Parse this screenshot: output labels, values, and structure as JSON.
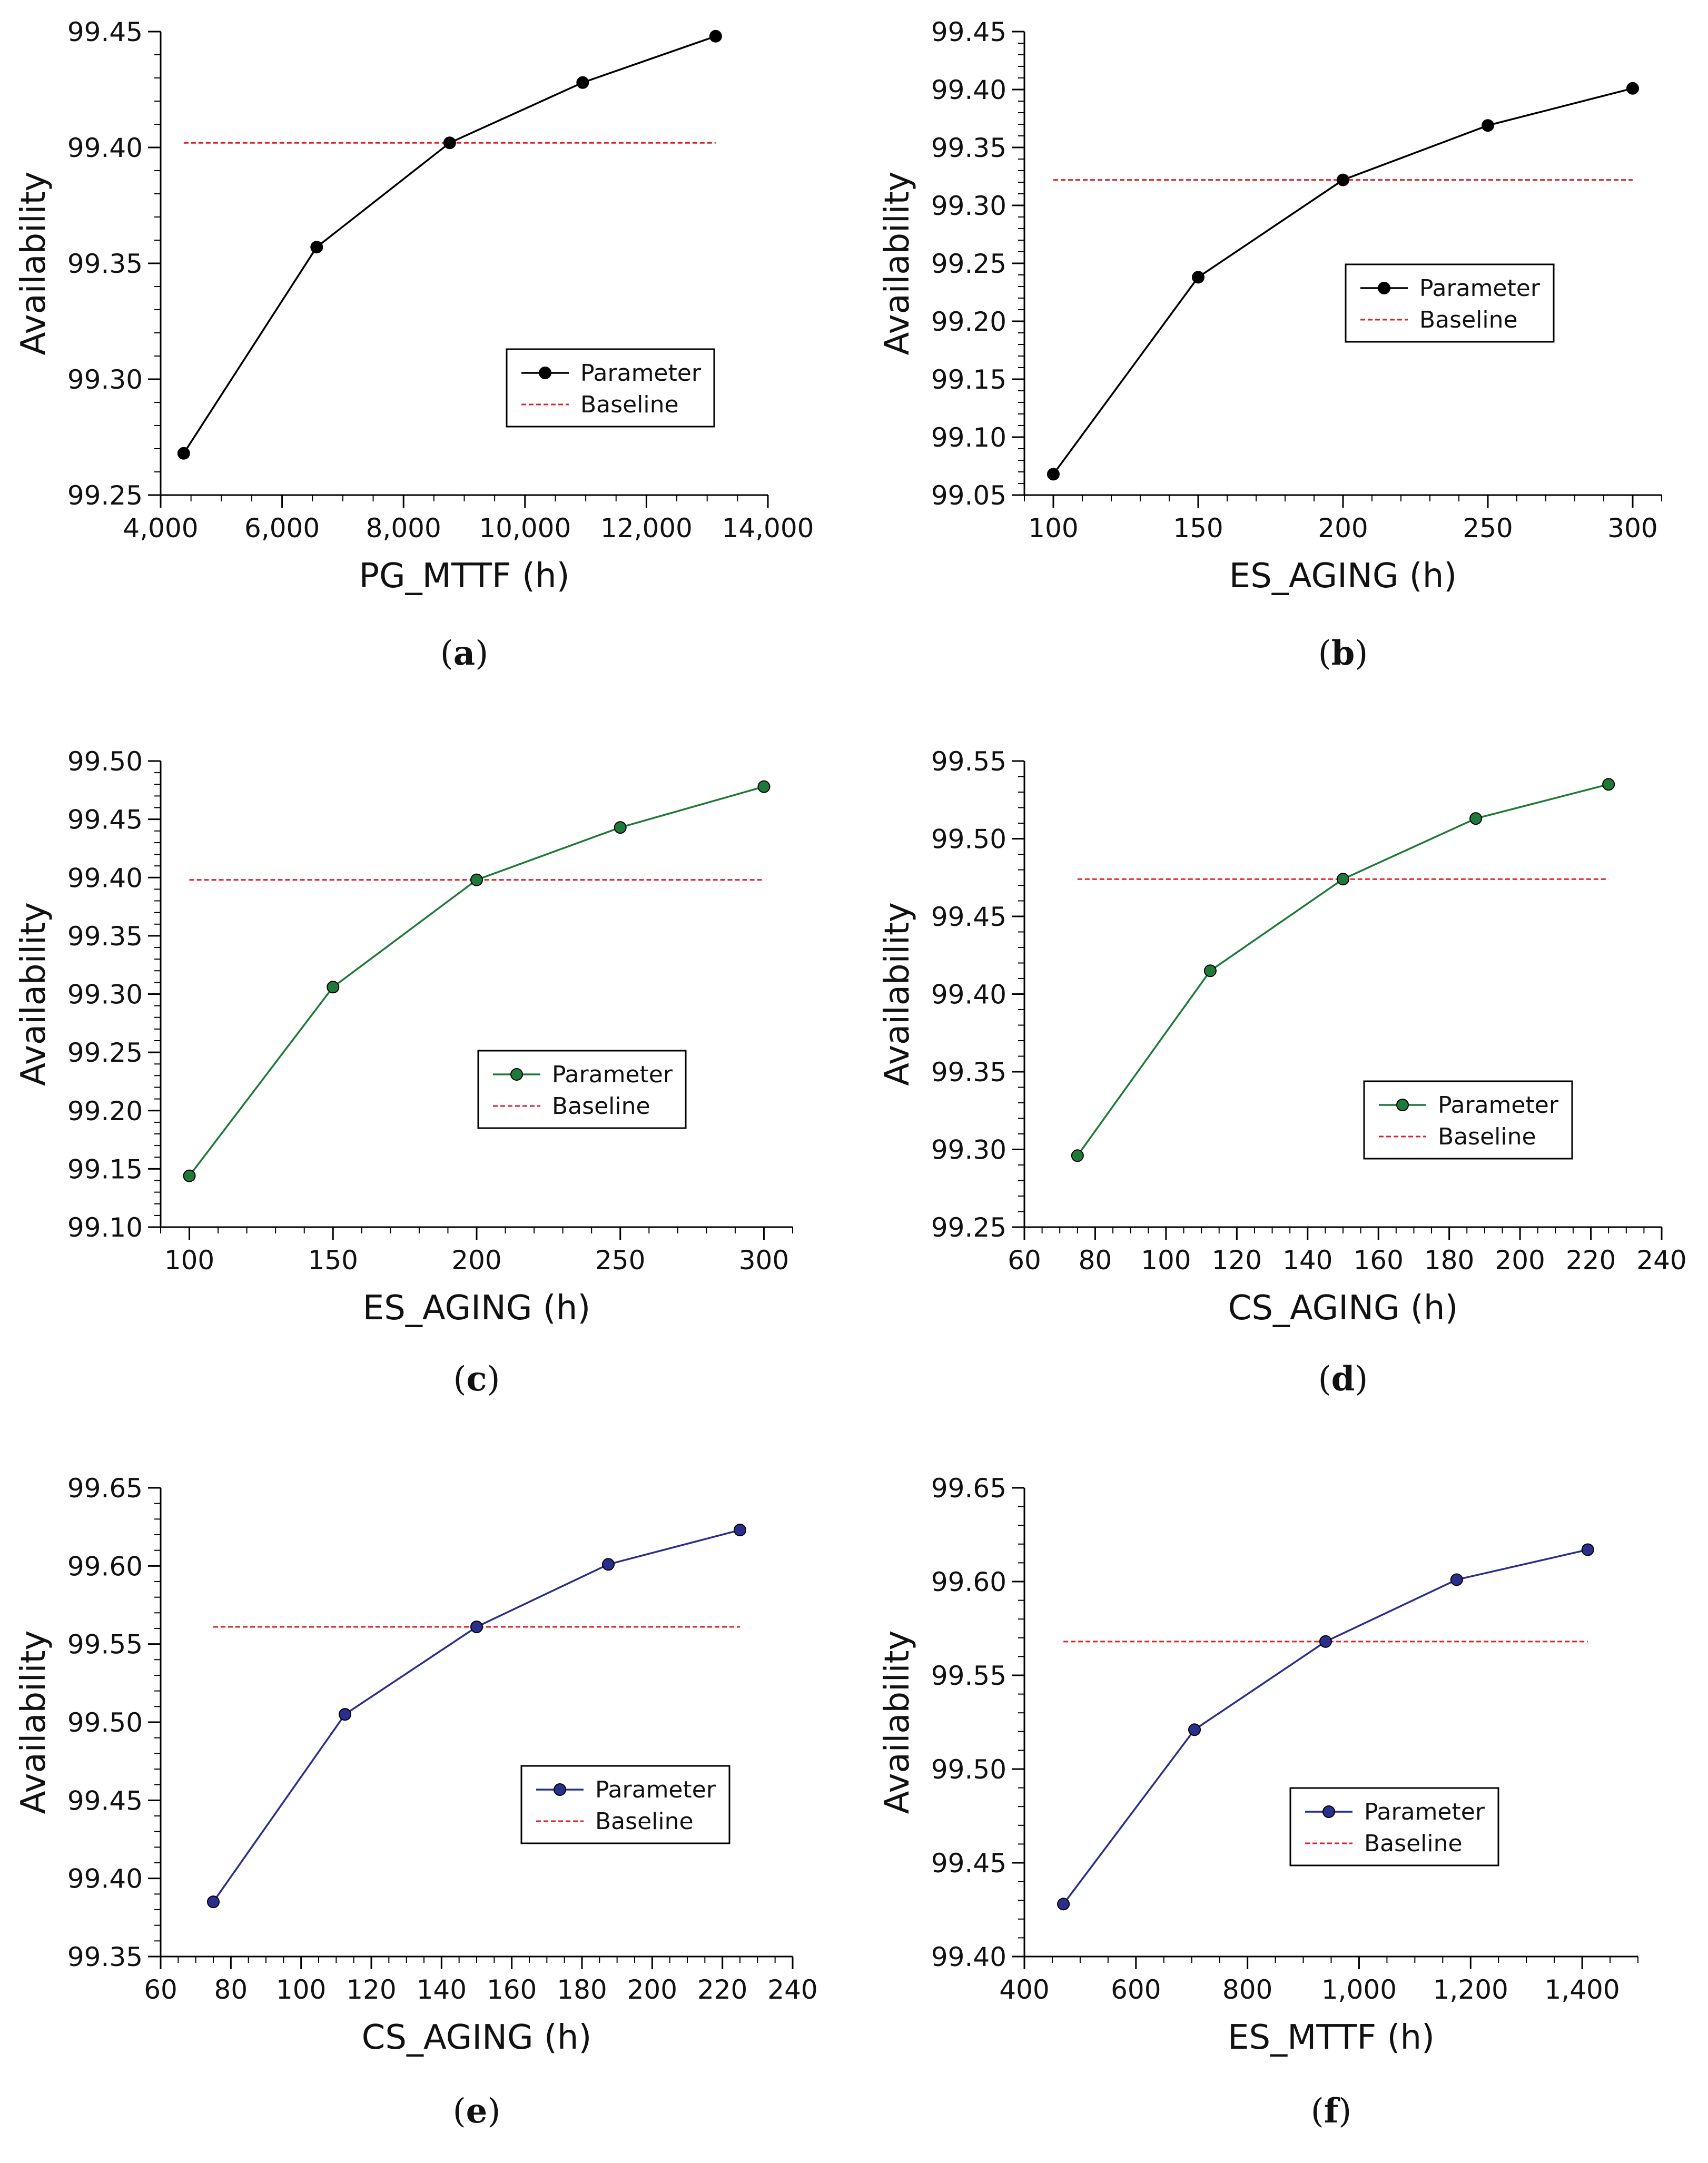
{
  "chart_data": [
    {
      "type": "line",
      "caption_label": "a",
      "xlabel": "PG_MTTF (h)",
      "ylabel": "Availability",
      "xlim": [
        4000,
        14000
      ],
      "ylim": [
        99.25,
        99.45
      ],
      "x_ticks": [
        4000,
        6000,
        8000,
        10000,
        12000,
        14000
      ],
      "x_tick_labels": [
        "4,000",
        "6,000",
        "8,000",
        "10,000",
        "12,000",
        "14,000"
      ],
      "x_minor_step": 500,
      "y_ticks": [
        99.25,
        99.3,
        99.35,
        99.4,
        99.45
      ],
      "y_tick_labels": [
        "99.25",
        "99.30",
        "99.35",
        "99.40",
        "99.45"
      ],
      "y_minor_step": 0.01,
      "color": "#000000",
      "series": [
        {
          "name": "Parameter",
          "x": [
            4380,
            6570,
            8760,
            10950,
            13140
          ],
          "y": [
            99.268,
            99.357,
            99.402,
            99.428,
            99.448
          ]
        },
        {
          "name": "Baseline",
          "x": [
            4380,
            13140
          ],
          "y": [
            99.402,
            99.402
          ]
        }
      ],
      "legend": [
        "Parameter",
        "Baseline"
      ],
      "legend_position": "lower-right"
    },
    {
      "type": "line",
      "caption_label": "b",
      "xlabel": "ES_AGING (h)",
      "ylabel": "Availability",
      "xlim": [
        90,
        310
      ],
      "ylim": [
        99.05,
        99.45
      ],
      "x_ticks": [
        100,
        150,
        200,
        250,
        300
      ],
      "x_tick_labels": [
        "100",
        "150",
        "200",
        "250",
        "300"
      ],
      "x_minor_step": 10,
      "y_ticks": [
        99.05,
        99.1,
        99.15,
        99.2,
        99.25,
        99.3,
        99.35,
        99.4,
        99.45
      ],
      "y_tick_labels": [
        "99.05",
        "99.10",
        "99.15",
        "99.20",
        "99.25",
        "99.30",
        "99.35",
        "99.40",
        "99.45"
      ],
      "y_minor_step": 0.01,
      "color": "#000000",
      "series": [
        {
          "name": "Parameter",
          "x": [
            100,
            150,
            200,
            250,
            300
          ],
          "y": [
            99.068,
            99.238,
            99.322,
            99.369,
            99.401
          ]
        },
        {
          "name": "Baseline",
          "x": [
            100,
            300
          ],
          "y": [
            99.322,
            99.322
          ]
        }
      ],
      "legend": [
        "Parameter",
        "Baseline"
      ],
      "legend_position": "center-right"
    },
    {
      "type": "line",
      "caption_label": "c",
      "xlabel": "ES_AGING (h)",
      "ylabel": "Availability",
      "xlim": [
        90,
        310
      ],
      "ylim": [
        99.1,
        99.5
      ],
      "x_ticks": [
        100,
        150,
        200,
        250,
        300
      ],
      "x_tick_labels": [
        "100",
        "150",
        "200",
        "250",
        "300"
      ],
      "x_minor_step": 10,
      "y_ticks": [
        99.1,
        99.15,
        99.2,
        99.25,
        99.3,
        99.35,
        99.4,
        99.45,
        99.5
      ],
      "y_tick_labels": [
        "99.10",
        "99.15",
        "99.20",
        "99.25",
        "99.30",
        "99.35",
        "99.40",
        "99.45",
        "99.50"
      ],
      "y_minor_step": 0.01,
      "color": "#1f7a3a",
      "series": [
        {
          "name": "Parameter",
          "x": [
            100,
            150,
            200,
            250,
            300
          ],
          "y": [
            99.144,
            99.306,
            99.398,
            99.443,
            99.478
          ]
        },
        {
          "name": "Baseline",
          "x": [
            100,
            300
          ],
          "y": [
            99.398,
            99.398
          ]
        }
      ],
      "legend": [
        "Parameter",
        "Baseline"
      ],
      "legend_position": "lower-right"
    },
    {
      "type": "line",
      "caption_label": "d",
      "xlabel": "CS_AGING (h)",
      "ylabel": "Availability",
      "xlim": [
        60,
        240
      ],
      "ylim": [
        99.25,
        99.55
      ],
      "x_ticks": [
        60,
        80,
        100,
        120,
        140,
        160,
        180,
        200,
        220,
        240
      ],
      "x_tick_labels": [
        "60",
        "80",
        "100",
        "120",
        "140",
        "160",
        "180",
        "200",
        "220",
        "240"
      ],
      "x_minor_step": 5,
      "y_ticks": [
        99.25,
        99.3,
        99.35,
        99.4,
        99.45,
        99.5,
        99.55
      ],
      "y_tick_labels": [
        "99.25",
        "99.30",
        "99.35",
        "99.40",
        "99.45",
        "99.50",
        "99.55"
      ],
      "y_minor_step": 0.01,
      "color": "#1f7a3a",
      "series": [
        {
          "name": "Parameter",
          "x": [
            75,
            112.5,
            150,
            187.5,
            225
          ],
          "y": [
            99.296,
            99.415,
            99.474,
            99.513,
            99.535
          ]
        },
        {
          "name": "Baseline",
          "x": [
            75,
            225
          ],
          "y": [
            99.474,
            99.474
          ]
        }
      ],
      "legend": [
        "Parameter",
        "Baseline"
      ],
      "legend_position": "lower-right"
    },
    {
      "type": "line",
      "caption_label": "e",
      "xlabel": "CS_AGING (h)",
      "ylabel": "Availability",
      "xlim": [
        60,
        240
      ],
      "ylim": [
        99.35,
        99.65
      ],
      "x_ticks": [
        60,
        80,
        100,
        120,
        140,
        160,
        180,
        200,
        220,
        240
      ],
      "x_tick_labels": [
        "60",
        "80",
        "100",
        "120",
        "140",
        "160",
        "180",
        "200",
        "220",
        "240"
      ],
      "x_minor_step": 5,
      "y_ticks": [
        99.35,
        99.4,
        99.45,
        99.5,
        99.55,
        99.6,
        99.65
      ],
      "y_tick_labels": [
        "99.35",
        "99.40",
        "99.45",
        "99.50",
        "99.55",
        "99.60",
        "99.65"
      ],
      "y_minor_step": 0.01,
      "color": "#2a2e8c",
      "series": [
        {
          "name": "Parameter",
          "x": [
            75,
            112.5,
            150,
            187.5,
            225
          ],
          "y": [
            99.385,
            99.505,
            99.561,
            99.601,
            99.623
          ]
        },
        {
          "name": "Baseline",
          "x": [
            75,
            225
          ],
          "y": [
            99.561,
            99.561
          ]
        }
      ],
      "legend": [
        "Parameter",
        "Baseline"
      ],
      "legend_position": "center-right"
    },
    {
      "type": "line",
      "caption_label": "f",
      "xlabel": "ES_MTTF (h)",
      "ylabel": "Availability",
      "xlim": [
        400,
        1500
      ],
      "ylim": [
        99.4,
        99.65
      ],
      "x_ticks": [
        400,
        600,
        800,
        1000,
        1200,
        1400
      ],
      "x_tick_labels": [
        "400",
        "600",
        "800",
        "1,000",
        "1,200",
        "1,400"
      ],
      "x_minor_step": 50,
      "y_ticks": [
        99.4,
        99.45,
        99.5,
        99.55,
        99.6,
        99.65
      ],
      "y_tick_labels": [
        "99.40",
        "99.45",
        "99.50",
        "99.55",
        "99.60",
        "99.65"
      ],
      "y_minor_step": 0.01,
      "color": "#2a2e8c",
      "series": [
        {
          "name": "Parameter",
          "x": [
            470,
            705,
            940,
            1175,
            1410
          ],
          "y": [
            99.428,
            99.521,
            99.568,
            99.601,
            99.617
          ]
        },
        {
          "name": "Baseline",
          "x": [
            470,
            1410
          ],
          "y": [
            99.568,
            99.568
          ]
        }
      ],
      "legend": [
        "Parameter",
        "Baseline"
      ],
      "legend_position": "center-right"
    }
  ],
  "baseline_color": "#e0202a"
}
